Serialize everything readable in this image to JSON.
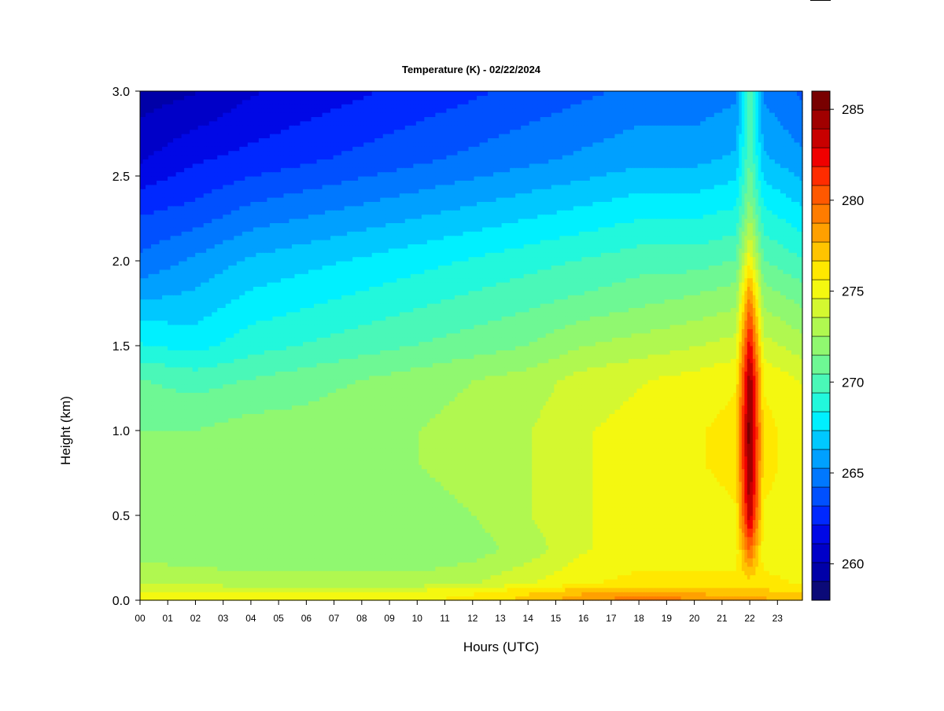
{
  "chart_data": {
    "type": "heatmap",
    "title": "Temperature (K) - 02/22/2024",
    "xlabel": "Hours (UTC)",
    "ylabel": "Height (km)",
    "x_ticks": [
      "00",
      "01",
      "02",
      "03",
      "04",
      "05",
      "06",
      "07",
      "08",
      "09",
      "10",
      "11",
      "12",
      "13",
      "14",
      "15",
      "16",
      "17",
      "18",
      "19",
      "20",
      "21",
      "22",
      "23"
    ],
    "y_ticks": [
      "0.0",
      "0.5",
      "1.0",
      "1.5",
      "2.0",
      "2.5",
      "3.0"
    ],
    "xlim": [
      0,
      23.9
    ],
    "ylim": [
      0,
      3.0
    ],
    "colorbar": {
      "range": [
        258,
        286
      ],
      "ticks": [
        "260",
        "265",
        "270",
        "275",
        "280",
        "285"
      ],
      "colors": [
        "#0b0a78",
        "#0000a8",
        "#0000c8",
        "#0008e6",
        "#0028ff",
        "#0050ff",
        "#0078ff",
        "#00a0ff",
        "#00c8ff",
        "#00f0ff",
        "#22f8dc",
        "#4af8b8",
        "#6ef894",
        "#90f870",
        "#b0f850",
        "#d4f830",
        "#f4f810",
        "#ffe800",
        "#ffc400",
        "#ffa000",
        "#ff7c00",
        "#ff5800",
        "#ff2c00",
        "#f00000",
        "#c80000",
        "#a00000",
        "#780000"
      ]
    },
    "temperature_grid": {
      "hours": [
        0,
        2,
        4,
        6,
        8,
        10,
        12,
        14,
        16,
        18,
        20,
        21.5,
        22,
        22.5,
        23.9
      ],
      "heights_km": [
        0.0,
        0.05,
        0.1,
        0.3,
        0.5,
        0.8,
        1.0,
        1.3,
        1.5,
        1.8,
        2.0,
        2.3,
        2.6,
        3.0
      ],
      "values_K": [
        [
          275.0,
          275.0,
          275.0,
          275.0,
          275.0,
          275.5,
          276.0,
          277.0,
          278.5,
          279.5,
          279.0,
          278.0,
          278.0,
          278.0,
          277.5
        ],
        [
          274.5,
          274.5,
          274.5,
          274.5,
          274.5,
          275.0,
          275.5,
          276.5,
          277.5,
          278.0,
          277.5,
          277.0,
          277.0,
          277.0,
          276.5
        ],
        [
          273.5,
          273.5,
          273.0,
          273.0,
          273.0,
          273.0,
          273.5,
          274.5,
          275.5,
          276.0,
          276.0,
          276.0,
          276.0,
          276.0,
          275.5
        ],
        [
          272.0,
          271.5,
          271.5,
          271.5,
          271.5,
          271.5,
          272.0,
          273.0,
          274.5,
          275.0,
          275.0,
          275.0,
          280.0,
          275.0,
          275.0
        ],
        [
          272.0,
          272.0,
          272.0,
          272.0,
          272.0,
          272.0,
          272.5,
          273.5,
          274.5,
          275.0,
          275.0,
          275.5,
          284.0,
          275.5,
          275.0
        ],
        [
          272.0,
          272.0,
          272.0,
          272.0,
          272.5,
          272.5,
          273.0,
          273.5,
          274.5,
          275.0,
          275.5,
          276.0,
          285.5,
          276.0,
          275.0
        ],
        [
          271.5,
          271.5,
          272.0,
          272.0,
          272.5,
          272.5,
          273.0,
          273.5,
          274.5,
          275.0,
          275.5,
          276.0,
          286.0,
          276.0,
          275.0
        ],
        [
          270.5,
          270.0,
          270.5,
          271.0,
          271.5,
          272.0,
          272.5,
          273.0,
          274.0,
          274.5,
          275.0,
          275.5,
          285.0,
          275.5,
          274.5
        ],
        [
          268.5,
          268.0,
          269.0,
          269.5,
          270.0,
          270.5,
          271.0,
          271.5,
          272.5,
          273.0,
          273.5,
          274.0,
          283.0,
          274.0,
          273.0
        ],
        [
          266.0,
          266.5,
          267.5,
          268.0,
          268.5,
          269.0,
          269.5,
          270.0,
          270.5,
          271.0,
          271.5,
          272.0,
          279.0,
          272.0,
          271.0
        ],
        [
          264.5,
          265.5,
          266.5,
          267.0,
          267.5,
          268.0,
          268.5,
          269.0,
          269.5,
          270.0,
          270.0,
          270.5,
          275.5,
          270.5,
          269.5
        ],
        [
          263.0,
          263.5,
          264.5,
          265.0,
          265.5,
          266.0,
          266.5,
          267.0,
          267.5,
          268.0,
          268.0,
          268.5,
          272.0,
          268.5,
          267.5
        ],
        [
          261.0,
          262.0,
          262.5,
          263.0,
          263.5,
          264.0,
          264.5,
          265.0,
          265.5,
          266.0,
          266.0,
          266.5,
          270.5,
          266.5,
          265.5
        ],
        [
          259.5,
          260.0,
          261.0,
          261.5,
          262.0,
          262.5,
          263.0,
          263.5,
          264.0,
          264.5,
          264.5,
          265.0,
          270.0,
          265.0,
          264.0
        ]
      ]
    }
  }
}
